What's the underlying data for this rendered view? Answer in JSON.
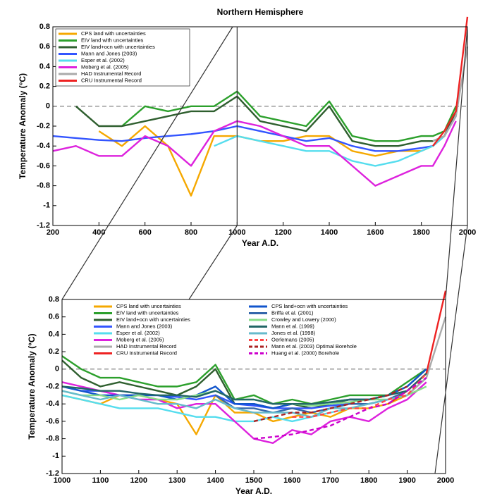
{
  "chart_data": [
    {
      "type": "line",
      "title": "Northern Hemisphere",
      "xlabel": "Year A.D.",
      "ylabel": "Temperature Anomaly (°C)",
      "x": [
        200,
        300,
        400,
        500,
        600,
        700,
        800,
        900,
        1000,
        1100,
        1200,
        1300,
        1400,
        1500,
        1600,
        1700,
        1800,
        1850,
        1900,
        1950,
        2000
      ],
      "xlim": [
        200,
        2000
      ],
      "xticks": [
        200,
        400,
        600,
        800,
        1000,
        1200,
        1400,
        1600,
        1800,
        2000
      ],
      "ylim": [
        -1.2,
        0.8
      ],
      "yticks": [
        0.8,
        0.6,
        0.4,
        0.2,
        0,
        -0.2,
        -0.4,
        -0.6,
        -0.8,
        -1,
        -1.2
      ],
      "zero_line": true,
      "legend": "upper left",
      "series": [
        {
          "name": "CPS land with uncertainties",
          "color": "#f5a800",
          "values": [
            null,
            null,
            -0.25,
            -0.4,
            -0.2,
            -0.4,
            -0.9,
            -0.3,
            -0.3,
            -0.35,
            -0.35,
            -0.3,
            -0.3,
            -0.45,
            -0.5,
            -0.45,
            -0.45,
            -0.4,
            -0.3,
            -0.05,
            null
          ]
        },
        {
          "name": "EIV land with uncertainties",
          "color": "#2ca02c",
          "values": [
            null,
            null,
            null,
            -0.2,
            0.0,
            -0.05,
            0.0,
            0.0,
            0.15,
            -0.1,
            -0.15,
            -0.2,
            0.05,
            -0.3,
            -0.35,
            -0.35,
            -0.3,
            -0.3,
            -0.25,
            0.0,
            null
          ]
        },
        {
          "name": "EIV land+ocn with uncertainties",
          "color": "#2f5f2f",
          "values": [
            null,
            0.0,
            -0.2,
            -0.2,
            -0.15,
            -0.1,
            -0.05,
            -0.05,
            0.1,
            -0.15,
            -0.2,
            -0.25,
            0.0,
            -0.35,
            -0.4,
            -0.4,
            -0.35,
            -0.35,
            -0.3,
            -0.05,
            null
          ]
        },
        {
          "name": "Mann and Jones (2003)",
          "color": "#3355ff",
          "values": [
            -0.3,
            -0.32,
            -0.34,
            -0.35,
            -0.32,
            -0.3,
            -0.28,
            -0.25,
            -0.2,
            -0.25,
            -0.3,
            -0.35,
            -0.32,
            -0.4,
            -0.45,
            -0.45,
            -0.42,
            -0.4,
            -0.3,
            -0.1,
            null
          ]
        },
        {
          "name": "Esper et al. (2002)",
          "color": "#55ddee",
          "values": [
            null,
            null,
            null,
            null,
            null,
            null,
            null,
            -0.4,
            -0.3,
            -0.35,
            -0.4,
            -0.45,
            -0.45,
            -0.55,
            -0.6,
            -0.55,
            -0.45,
            -0.4,
            -0.3,
            null,
            null
          ]
        },
        {
          "name": "Moberg et al. (2005)",
          "color": "#dd22dd",
          "values": [
            -0.45,
            -0.4,
            -0.5,
            -0.5,
            -0.3,
            -0.4,
            -0.6,
            -0.25,
            -0.15,
            -0.2,
            -0.3,
            -0.4,
            -0.4,
            -0.6,
            -0.8,
            -0.7,
            -0.6,
            -0.6,
            -0.4,
            -0.15,
            null
          ]
        },
        {
          "name": "HAD Instrumental Record",
          "color": "#aaaaaa",
          "values": [
            null,
            null,
            null,
            null,
            null,
            null,
            null,
            null,
            null,
            null,
            null,
            null,
            null,
            null,
            null,
            null,
            null,
            -0.35,
            -0.3,
            -0.1,
            0.6
          ]
        },
        {
          "name": "CRU Instrumental Record",
          "color": "#ee2222",
          "values": [
            null,
            null,
            null,
            null,
            null,
            null,
            null,
            null,
            null,
            null,
            null,
            null,
            null,
            null,
            null,
            null,
            null,
            -0.4,
            -0.25,
            -0.05,
            0.9
          ]
        }
      ]
    },
    {
      "type": "line",
      "xlabel": "Year A.D.",
      "ylabel": "Temperature Anomaly (°C)",
      "x": [
        1000,
        1050,
        1100,
        1150,
        1200,
        1250,
        1300,
        1350,
        1400,
        1450,
        1500,
        1550,
        1600,
        1650,
        1700,
        1750,
        1800,
        1850,
        1900,
        1950,
        2000
      ],
      "xlim": [
        1000,
        2000
      ],
      "xticks": [
        1000,
        1100,
        1200,
        1300,
        1400,
        1500,
        1600,
        1700,
        1800,
        1900,
        2000
      ],
      "ylim": [
        -1.2,
        0.8
      ],
      "yticks": [
        0.8,
        0.6,
        0.4,
        0.2,
        0,
        -0.2,
        -0.4,
        -0.6,
        -0.8,
        -1,
        -1.2
      ],
      "zero_line": true,
      "legend": "upper center",
      "series": [
        {
          "name": "CPS land with uncertainties",
          "color": "#f5a800",
          "values": [
            -0.3,
            -0.35,
            -0.4,
            -0.3,
            -0.3,
            -0.35,
            -0.4,
            -0.75,
            -0.3,
            -0.5,
            -0.5,
            -0.6,
            -0.55,
            -0.5,
            -0.55,
            -0.45,
            -0.45,
            -0.4,
            -0.3,
            -0.1,
            null
          ]
        },
        {
          "name": "EIV land with uncertainties",
          "color": "#2ca02c",
          "values": [
            0.15,
            0.0,
            -0.1,
            -0.1,
            -0.15,
            -0.2,
            -0.2,
            -0.15,
            0.05,
            -0.35,
            -0.3,
            -0.4,
            -0.35,
            -0.4,
            -0.35,
            -0.3,
            -0.3,
            -0.3,
            -0.15,
            0.0,
            null
          ]
        },
        {
          "name": "EIV land+ocn with uncertainties",
          "color": "#2f5f2f",
          "values": [
            0.1,
            -0.1,
            -0.2,
            -0.15,
            -0.2,
            -0.25,
            -0.3,
            -0.2,
            0.0,
            -0.4,
            -0.4,
            -0.45,
            -0.4,
            -0.45,
            -0.4,
            -0.35,
            -0.35,
            -0.3,
            -0.2,
            0.0,
            null
          ]
        },
        {
          "name": "Mann and Jones (2003)",
          "color": "#3355ff",
          "values": [
            -0.2,
            -0.25,
            -0.25,
            -0.3,
            -0.3,
            -0.3,
            -0.32,
            -0.35,
            -0.3,
            -0.4,
            -0.42,
            -0.45,
            -0.45,
            -0.45,
            -0.42,
            -0.4,
            -0.4,
            -0.35,
            -0.3,
            -0.1,
            null
          ]
        },
        {
          "name": "Esper et al. (2002)",
          "color": "#55ddee",
          "values": [
            -0.3,
            -0.35,
            -0.4,
            -0.45,
            -0.45,
            -0.45,
            -0.5,
            -0.55,
            -0.55,
            -0.6,
            -0.6,
            -0.55,
            -0.6,
            -0.55,
            -0.5,
            -0.45,
            -0.4,
            -0.35,
            -0.3,
            null,
            null
          ]
        },
        {
          "name": "Moberg et al. (2005)",
          "color": "#dd22dd",
          "values": [
            -0.15,
            -0.2,
            -0.25,
            -0.3,
            -0.35,
            -0.35,
            -0.45,
            -0.4,
            -0.4,
            -0.6,
            -0.8,
            -0.85,
            -0.7,
            -0.75,
            -0.6,
            -0.55,
            -0.6,
            -0.45,
            -0.35,
            -0.15,
            null
          ]
        },
        {
          "name": "HAD Instrumental Record",
          "color": "#aaaaaa",
          "values": [
            null,
            null,
            null,
            null,
            null,
            null,
            null,
            null,
            null,
            null,
            null,
            null,
            null,
            null,
            null,
            null,
            null,
            -0.35,
            -0.3,
            -0.1,
            0.6
          ]
        },
        {
          "name": "CRU Instrumental Record",
          "color": "#ee2222",
          "values": [
            null,
            null,
            null,
            null,
            null,
            null,
            null,
            null,
            null,
            null,
            null,
            null,
            null,
            null,
            null,
            null,
            null,
            -0.4,
            -0.25,
            -0.05,
            0.9
          ]
        },
        {
          "name": "CPS land+ocn with uncertainties",
          "color": "#1155cc",
          "values": [
            -0.2,
            -0.25,
            -0.3,
            -0.3,
            -0.3,
            -0.3,
            -0.35,
            -0.3,
            -0.2,
            -0.4,
            -0.4,
            -0.45,
            -0.4,
            -0.42,
            -0.38,
            -0.35,
            -0.35,
            -0.3,
            -0.2,
            0.0,
            null
          ]
        },
        {
          "name": "Briffa et al. (2001)",
          "color": "#3366aa",
          "values": [
            null,
            null,
            null,
            null,
            null,
            null,
            null,
            null,
            -0.3,
            -0.45,
            -0.45,
            -0.5,
            -0.45,
            -0.5,
            -0.45,
            -0.4,
            -0.4,
            -0.35,
            -0.25,
            null,
            null
          ]
        },
        {
          "name": "Crowley and Lowery (2000)",
          "color": "#88dd88",
          "values": [
            -0.25,
            -0.3,
            -0.3,
            -0.35,
            -0.3,
            -0.35,
            -0.35,
            -0.3,
            -0.25,
            -0.35,
            -0.35,
            -0.4,
            -0.4,
            -0.42,
            -0.4,
            -0.38,
            -0.35,
            -0.35,
            -0.3,
            -0.2,
            null
          ]
        },
        {
          "name": "Mann et al. (1999)",
          "color": "#226666",
          "values": [
            -0.2,
            -0.22,
            -0.25,
            -0.25,
            -0.28,
            -0.3,
            -0.3,
            -0.32,
            -0.25,
            -0.35,
            -0.35,
            -0.4,
            -0.4,
            -0.4,
            -0.38,
            -0.35,
            -0.35,
            -0.3,
            -0.25,
            -0.05,
            null
          ]
        },
        {
          "name": "Jones et al. (1998)",
          "color": "#66bbcc",
          "values": [
            -0.25,
            -0.3,
            -0.35,
            -0.3,
            -0.35,
            -0.4,
            -0.4,
            -0.45,
            -0.35,
            -0.45,
            -0.5,
            -0.5,
            -0.5,
            -0.55,
            -0.45,
            -0.45,
            -0.4,
            -0.35,
            -0.3,
            null,
            null
          ]
        },
        {
          "name": "Oerlemans (2005)",
          "color": "#ff4444",
          "dashed": true,
          "values": [
            null,
            null,
            null,
            null,
            null,
            null,
            null,
            null,
            null,
            null,
            null,
            null,
            -0.55,
            -0.55,
            -0.5,
            -0.45,
            -0.45,
            -0.35,
            -0.3,
            -0.05,
            null
          ]
        },
        {
          "name": "Mann et al. (2003) Optimal Borehole",
          "color": "#aa2222",
          "dashed": true,
          "values": [
            null,
            null,
            null,
            null,
            null,
            null,
            null,
            null,
            null,
            null,
            -0.6,
            -0.55,
            -0.5,
            -0.5,
            -0.45,
            -0.4,
            -0.35,
            -0.3,
            -0.2,
            null,
            null
          ]
        },
        {
          "name": "Huang et al. (2000) Borehole",
          "color": "#cc00cc",
          "dashed": true,
          "values": [
            null,
            null,
            null,
            null,
            null,
            null,
            null,
            null,
            null,
            null,
            -0.8,
            -0.78,
            -0.75,
            -0.7,
            -0.65,
            -0.55,
            -0.45,
            -0.4,
            -0.25,
            -0.1,
            null
          ]
        }
      ]
    }
  ]
}
